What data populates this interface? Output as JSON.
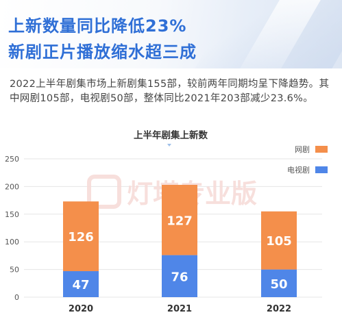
{
  "header": {
    "title_line1": "上新数量同比降低23%",
    "title_line2": "新剧正片播放缩水超三成"
  },
  "description": "2022上半年剧集市场上新剧集155部，较前两年同期均呈下降趋势。其中网剧105部，电视剧50部，整体同比2021年203部减少23.6%。",
  "watermark": "灯塔专业版",
  "colors": {
    "title": "#2f6fd6",
    "web_series": "#f48f4b",
    "tv_series": "#4f86e8"
  },
  "chart_data": {
    "type": "bar",
    "stacked": true,
    "title": "上半年剧集上新数",
    "categories": [
      "2020",
      "2021",
      "2022"
    ],
    "series": [
      {
        "name": "电视剧",
        "values": [
          47,
          76,
          50
        ],
        "color": "#4f86e8"
      },
      {
        "name": "网剧",
        "values": [
          126,
          127,
          105
        ],
        "color": "#f48f4b"
      }
    ],
    "ylim": [
      0,
      250
    ],
    "yticks": [
      0,
      50,
      100,
      150,
      200,
      250
    ],
    "grid": true,
    "legend_position": "top-right"
  }
}
